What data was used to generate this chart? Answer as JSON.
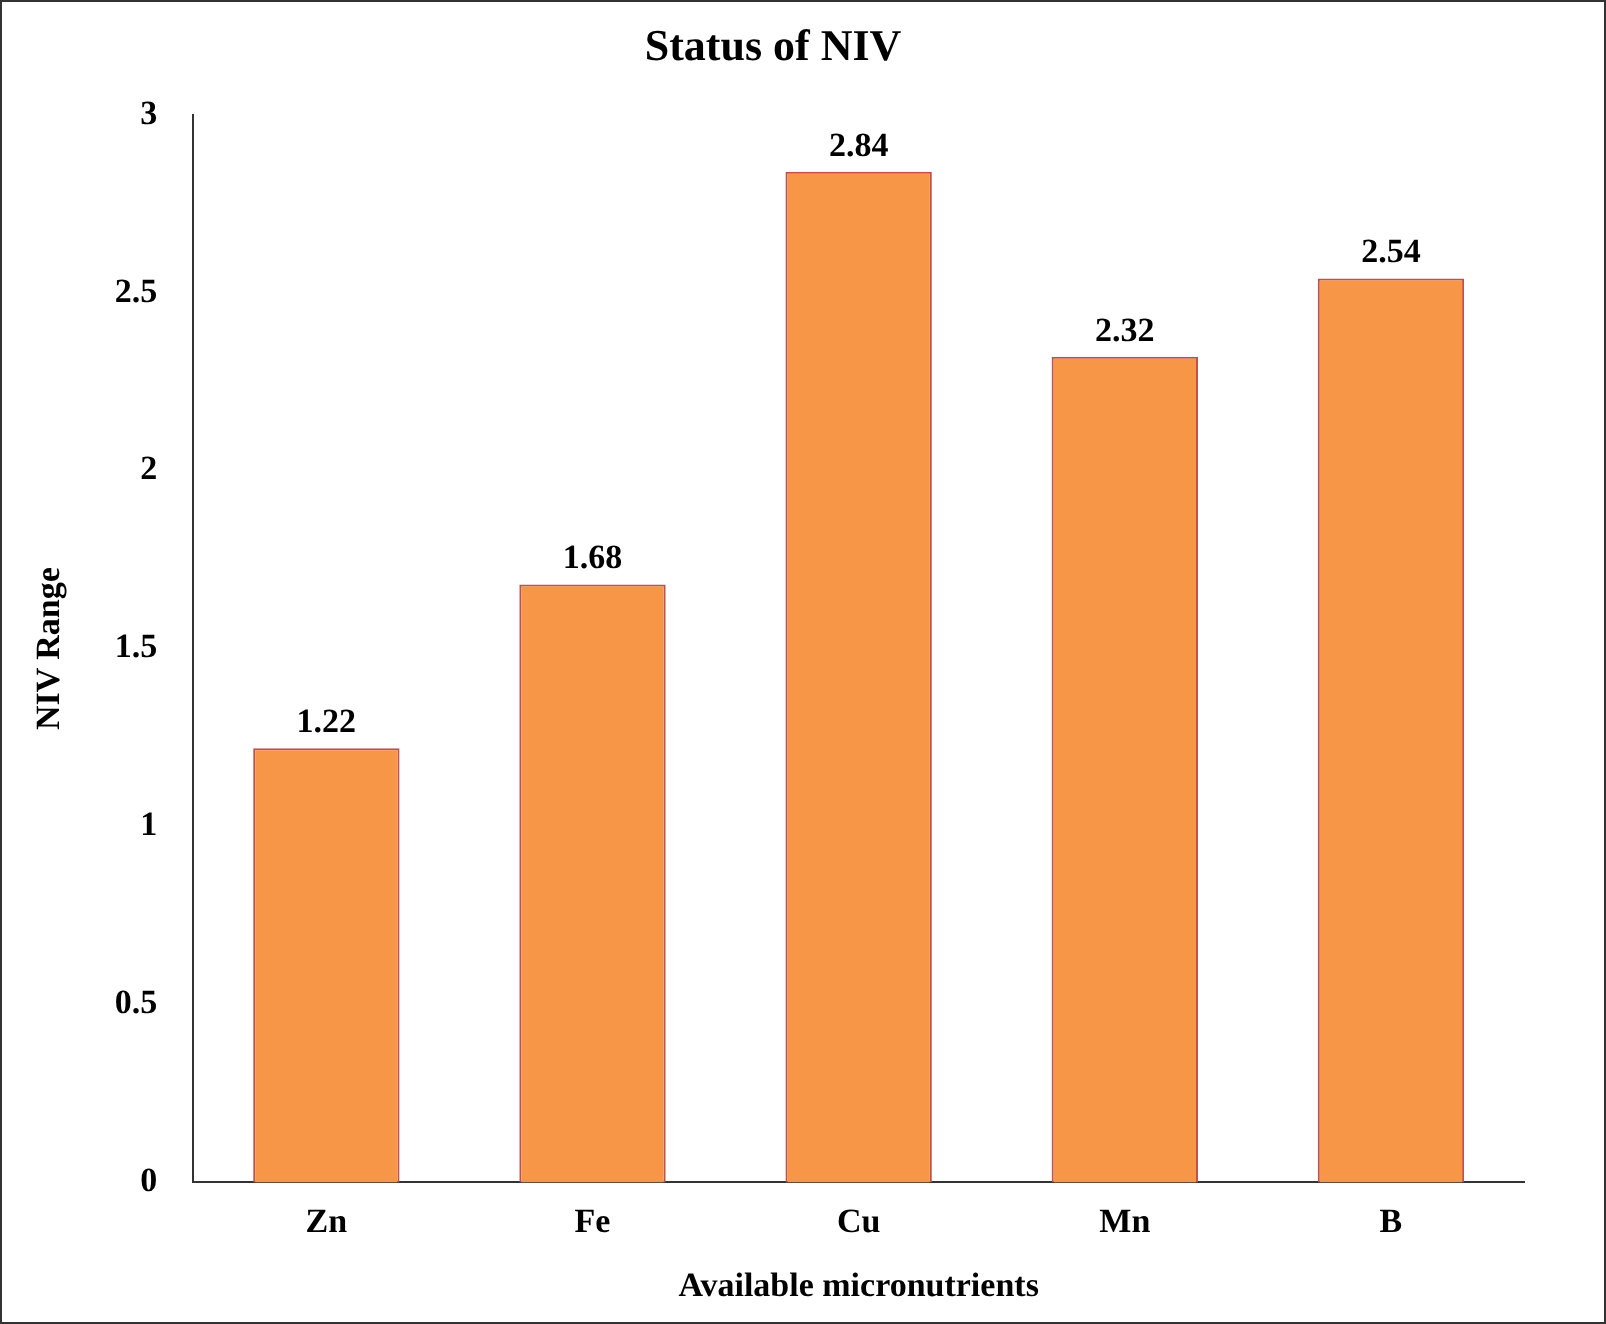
{
  "chart_data": {
    "type": "bar",
    "title": "Status of NIV",
    "xlabel": "Available micronutrients",
    "ylabel": "NIV Range",
    "categories": [
      "Zn",
      "Fe",
      "Cu",
      "Mn",
      "B"
    ],
    "values": [
      1.22,
      1.68,
      2.84,
      2.32,
      2.54
    ],
    "color": "#f79646",
    "ylim": [
      0,
      3
    ],
    "yticks": [
      0,
      0.5,
      1,
      1.5,
      2,
      2.5,
      3
    ],
    "grid": false,
    "data_labels": true
  }
}
